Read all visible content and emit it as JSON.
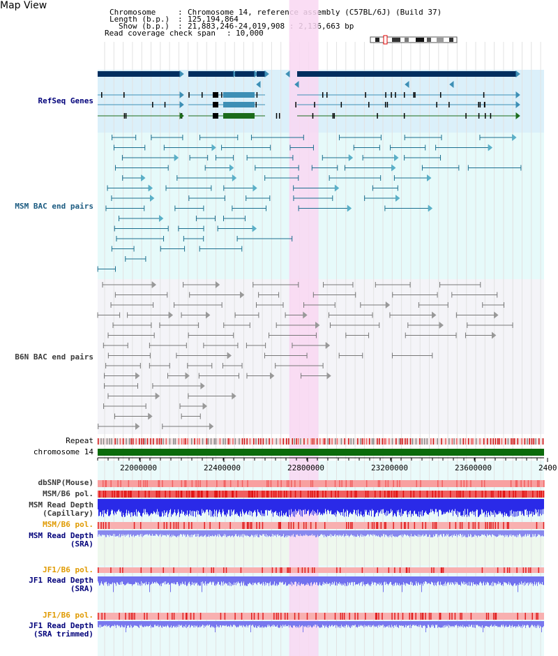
{
  "app_title": "Map View",
  "info": {
    "chromosome_label": "Chromosome",
    "chromosome_value": "Chromosome 14, reference assembly (C57BL/6J) (Build 37)",
    "length_label": "Length (b.p.)",
    "length_value": "125,194,864",
    "show_label": "Show (b.p.)",
    "show_value": "21,883,246-24,019,908 : 2,136,663 bp",
    "coverage_label": "Read coverage check span",
    "coverage_value": "10,000"
  },
  "tracks": {
    "refseq": "RefSeq Genes",
    "msm_bac": "MSM BAC end pairs",
    "b6n_bac": "B6N BAC end pairs",
    "repeat": "Repeat",
    "chromosome": "chromosome 14",
    "dbsnp": "dbSNP(Mouse)",
    "msm_b6_pol_1": "MSM/B6 pol.",
    "msm_read_depth_cap_1": "MSM Read Depth",
    "msm_read_depth_cap_2": "(Capillary)",
    "msm_b6_pol_2": "MSM/B6 pol.",
    "msm_read_depth_sra_1": "MSM Read Depth",
    "msm_read_depth_sra_2": "(SRA)",
    "jf1_b6_pol_1": "JF1/B6 pol.",
    "jf1_read_depth_sra_1": "JF1 Read Depth",
    "jf1_read_depth_sra_2": "(SRA)",
    "jf1_b6_pol_2": "JF1/B6 pol.",
    "jf1_read_depth_trim_1": "JF1 Read Depth",
    "jf1_read_depth_trim_2": "(SRA trimmed)"
  },
  "axis": {
    "range": [
      21883246,
      24019908
    ],
    "ticks": [
      "22000000",
      "22400000",
      "22800000",
      "23200000",
      "23600000",
      "2400"
    ]
  },
  "highlight_region": [
    22800000,
    22940000
  ],
  "colors": {
    "refseq_bg": "#dbf0fa",
    "msm_bg": "#e6fafa",
    "b6n_bg": "#f4f4f8",
    "highlight": "#f9d7f2",
    "gene_navy": "#002e5f",
    "gene_teal": "#3d8fb5",
    "gene_green": "#1b6b1b",
    "msm_pair": "#1a6e8e",
    "b6n_pair": "#777777",
    "chromosome_bar": "#0b6b0b",
    "snp_red": "#e83030",
    "depth_blue": "#2a2ae8",
    "depth_light": "#8a8af0"
  }
}
